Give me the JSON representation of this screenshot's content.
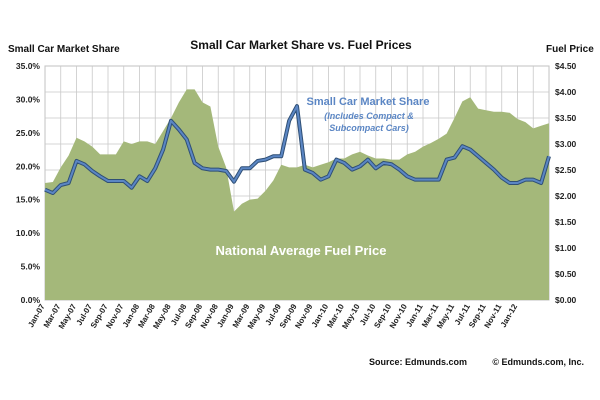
{
  "chart_data": {
    "type": "line",
    "title": "Small Car Market Share vs. Fuel Prices",
    "ylabel_left": "Small Car Market  Share",
    "ylabel_right": "Fuel Price",
    "ylim_left": [
      0,
      35
    ],
    "ylim_right": [
      0,
      4.5
    ],
    "yticks_left": [
      "0.0%",
      "5.0%",
      "10.0%",
      "15.0%",
      "20.0%",
      "25.0%",
      "30.0%",
      "35.0%"
    ],
    "yticks_right": [
      "$0.00",
      "$0.50",
      "$1.00",
      "$1.50",
      "$2.00",
      "$2.50",
      "$3.00",
      "$3.50",
      "$4.00",
      "$4.50"
    ],
    "x_tick_labels": [
      "Jan-07",
      "Mar-07",
      "May-07",
      "Jul-07",
      "Sep-07",
      "Nov-07",
      "Jan-08",
      "Mar-08",
      "May-08",
      "Jul-08",
      "Sep-08",
      "Nov-08",
      "Jan-09",
      "Mar-09",
      "May-09",
      "Jul-09",
      "Sep-09",
      "Nov-09",
      "Jan-10",
      "Mar-10",
      "May-10",
      "Jul-10",
      "Sep-10",
      "Nov-10",
      "Jan-11",
      "Mar-11",
      "May-11",
      "Jul-11",
      "Sep-11",
      "Nov-11",
      "Jan-12"
    ],
    "grid": true,
    "colors": {
      "fuel_area": "#a4b87a",
      "share_line": "#5b86c4",
      "share_line_outline": "#2f4f75",
      "grid": "#c8c8c8"
    },
    "series": [
      {
        "name": "Small Car Market Share",
        "axis": "left",
        "kind": "line",
        "values": [
          16.5,
          16.0,
          17.2,
          17.5,
          20.8,
          20.3,
          19.3,
          18.5,
          17.8,
          17.8,
          17.8,
          16.8,
          18.5,
          17.8,
          19.7,
          22.5,
          26.8,
          25.5,
          24.0,
          20.5,
          19.7,
          19.5,
          19.5,
          19.3,
          17.7,
          19.7,
          19.7,
          20.8,
          21.0,
          21.5,
          21.5,
          26.8,
          29.0,
          19.5,
          19.0,
          18.0,
          18.5,
          21.0,
          20.5,
          19.5,
          20.0,
          21.0,
          19.7,
          20.5,
          20.3,
          19.5,
          18.5,
          18.0,
          18.0,
          18.0,
          18.0,
          21.0,
          21.3,
          23.0,
          22.5,
          21.5,
          20.5,
          19.5,
          18.3,
          17.5,
          17.5,
          18.0,
          18.0,
          17.5,
          21.5
        ]
      },
      {
        "name": "National Average Fuel Price",
        "axis": "right",
        "kind": "area",
        "values": [
          2.25,
          2.27,
          2.55,
          2.78,
          3.12,
          3.05,
          2.95,
          2.8,
          2.8,
          2.8,
          3.05,
          3.0,
          3.05,
          3.05,
          3.0,
          3.25,
          3.5,
          3.8,
          4.05,
          4.05,
          3.8,
          3.72,
          2.95,
          2.55,
          1.7,
          1.85,
          1.93,
          1.95,
          2.1,
          2.3,
          2.6,
          2.55,
          2.55,
          2.6,
          2.55,
          2.6,
          2.65,
          2.72,
          2.72,
          2.8,
          2.85,
          2.78,
          2.72,
          2.72,
          2.7,
          2.7,
          2.8,
          2.85,
          2.95,
          3.02,
          3.1,
          3.2,
          3.5,
          3.82,
          3.9,
          3.68,
          3.65,
          3.62,
          3.62,
          3.6,
          3.48,
          3.42,
          3.3,
          3.35,
          3.4
        ]
      }
    ],
    "annotations": {
      "share_title": "Small Car Market Share",
      "share_sub1": "(Includes Compact &",
      "share_sub2": "Subcompact Cars)",
      "fuel_label": "National Average Fuel Price"
    }
  },
  "footer": {
    "source": "Source: Edmunds.com",
    "copyright": "© Edmunds.com, Inc."
  }
}
